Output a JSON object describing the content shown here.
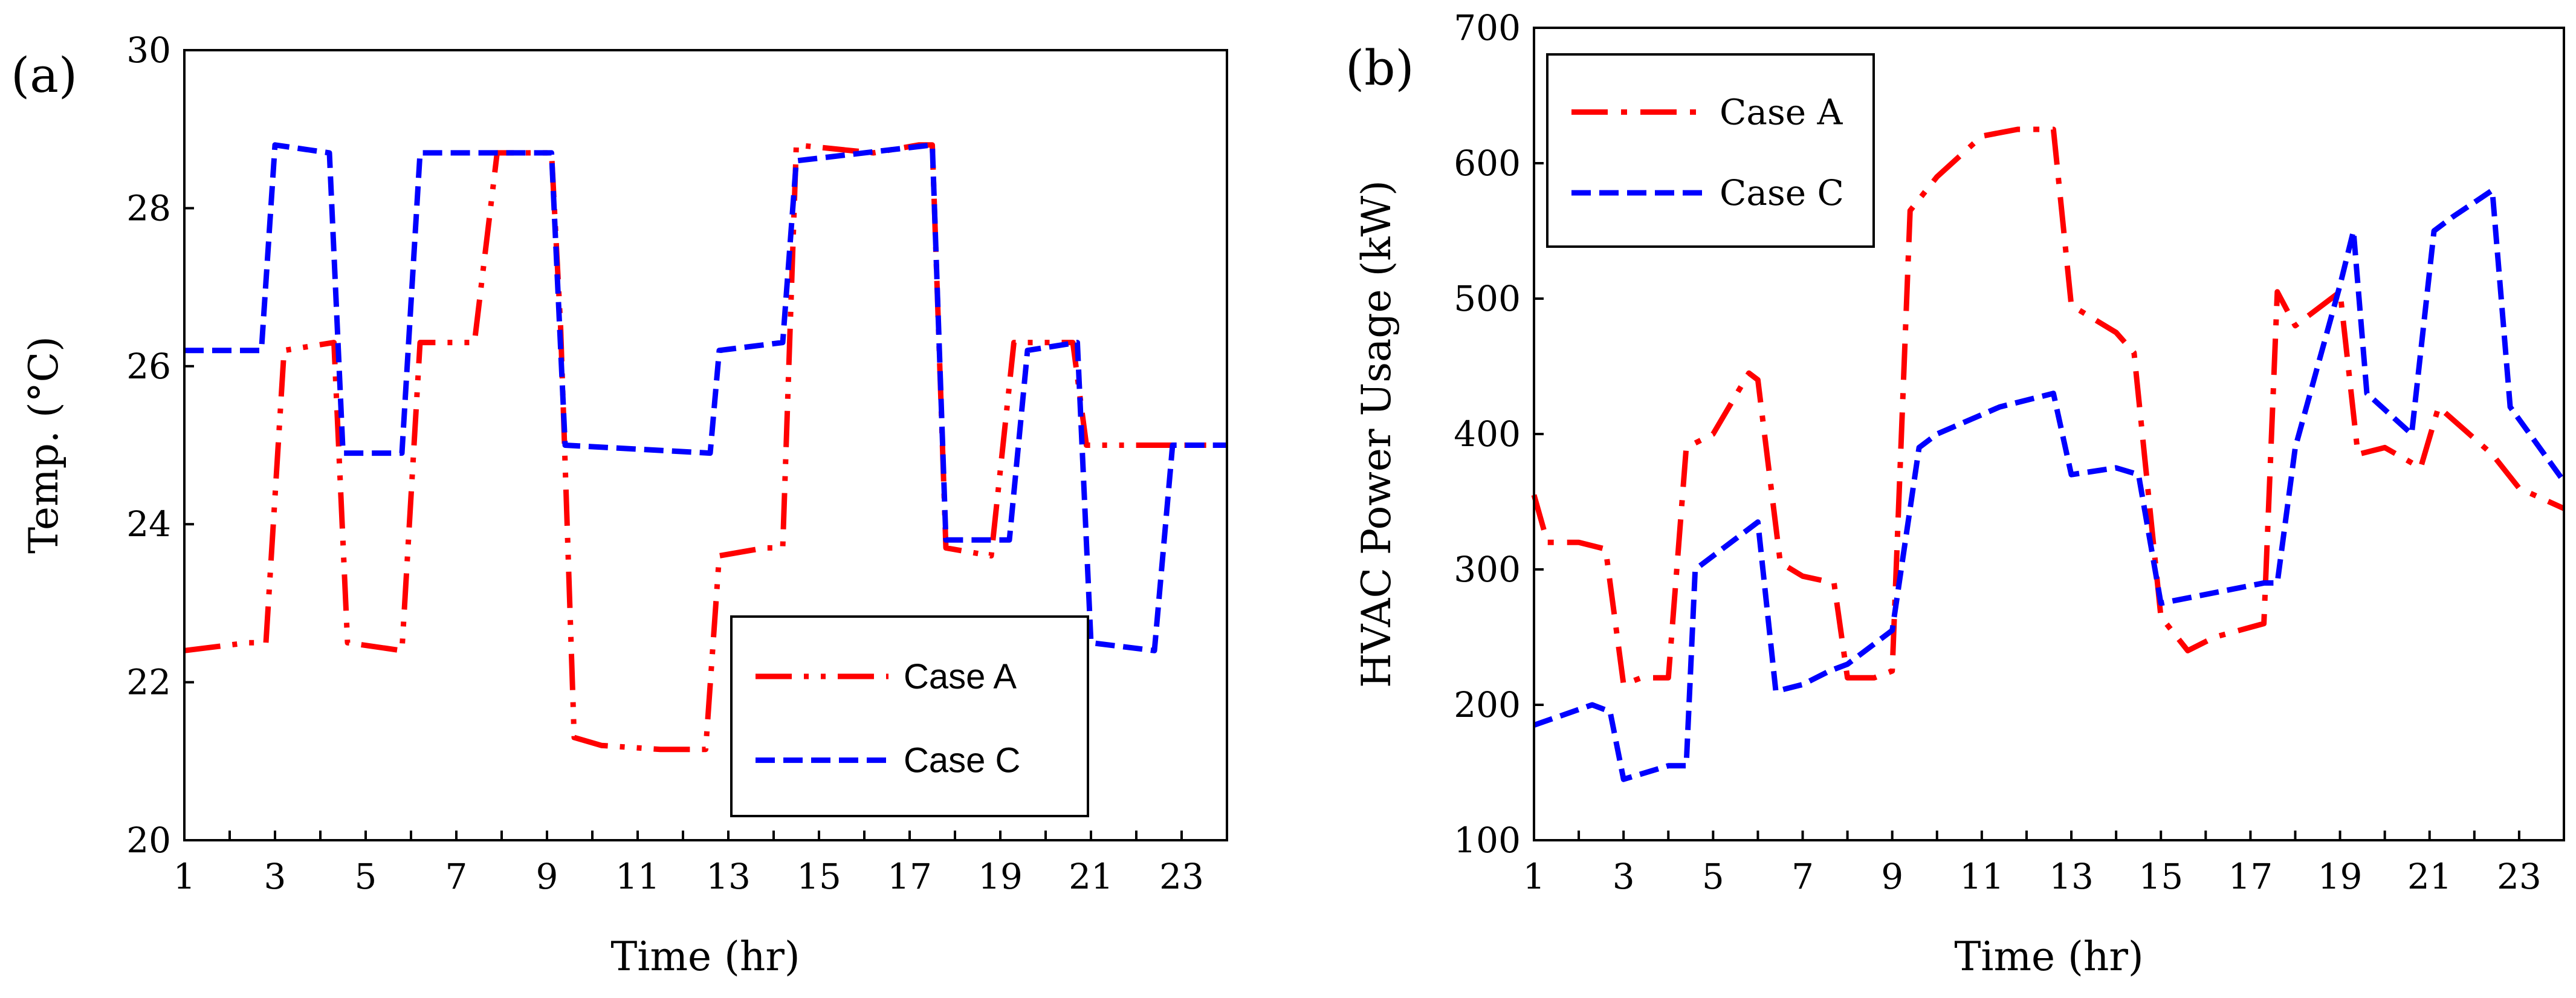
{
  "chart_data": [
    {
      "type": "line",
      "panel_label": "(a)",
      "xlabel": "Time (hr)",
      "ylabel": "Temp. (°C)",
      "xlim": [
        1,
        24
      ],
      "ylim": [
        20,
        30
      ],
      "xticks": [
        1,
        3,
        5,
        7,
        9,
        11,
        13,
        15,
        17,
        19,
        21,
        23
      ],
      "yticks": [
        20,
        22,
        24,
        26,
        28,
        30
      ],
      "legend_position": "bottom-right",
      "series": [
        {
          "name": "Case A",
          "color": "#ff0000",
          "dash": "dashdotdot",
          "x": [
            1,
            2.4,
            2.8,
            3.2,
            4.3,
            4.6,
            5.8,
            6.2,
            7.4,
            7.9,
            8.3,
            9.1,
            9.3,
            9.6,
            10.2,
            11.5,
            12.5,
            12.8,
            13.8,
            14.2,
            14.5,
            16.2,
            17.2,
            17.5,
            17.8,
            18.8,
            19.3,
            20.6,
            20.9,
            21.3,
            24
          ],
          "y": [
            22.4,
            22.5,
            22.5,
            26.2,
            26.3,
            22.5,
            22.4,
            26.3,
            26.3,
            28.7,
            28.7,
            28.7,
            26.5,
            21.3,
            21.2,
            21.15,
            21.15,
            23.6,
            23.7,
            23.7,
            28.8,
            28.7,
            28.8,
            28.8,
            23.7,
            23.6,
            26.3,
            26.3,
            25.0,
            25.0,
            25.0
          ]
        },
        {
          "name": "Case C",
          "color": "#0000ff",
          "dash": "dashed",
          "x": [
            1,
            2.7,
            3.0,
            4.2,
            4.5,
            5.8,
            6.2,
            9.1,
            9.4,
            12.6,
            12.8,
            14.2,
            14.5,
            17.5,
            17.8,
            19.2,
            19.6,
            20.7,
            21.0,
            22.4,
            22.8,
            24
          ],
          "y": [
            26.2,
            26.2,
            28.8,
            28.7,
            24.9,
            24.9,
            28.7,
            28.7,
            25.0,
            24.9,
            26.2,
            26.3,
            28.6,
            28.8,
            23.8,
            23.8,
            26.2,
            26.3,
            22.5,
            22.4,
            25.0,
            25.0
          ]
        }
      ]
    },
    {
      "type": "line",
      "panel_label": "(b)",
      "xlabel": "Time (hr)",
      "ylabel": "HVAC Power Usage (kW)",
      "xlim": [
        1,
        24
      ],
      "ylim": [
        100,
        700
      ],
      "xticks": [
        1,
        3,
        5,
        7,
        9,
        11,
        13,
        15,
        17,
        19,
        21,
        23
      ],
      "yticks": [
        100,
        200,
        300,
        400,
        500,
        600,
        700
      ],
      "legend_position": "top-left",
      "series": [
        {
          "name": "Case A",
          "color": "#ff0000",
          "dash": "dashdot",
          "x": [
            1,
            1.3,
            2,
            2.6,
            3.0,
            3.4,
            4.0,
            4.4,
            5.0,
            5.8,
            6.0,
            6.5,
            7.0,
            7.7,
            8.0,
            8.6,
            9.0,
            9.4,
            10.0,
            11.0,
            11.8,
            12.6,
            13.0,
            14.0,
            14.4,
            15.0,
            15.6,
            16.2,
            17.3,
            17.6,
            18.0,
            19.0,
            19.4,
            20.0,
            20.8,
            21.2,
            22.4,
            23.0,
            24
          ],
          "y": [
            355,
            320,
            320,
            315,
            215,
            220,
            220,
            390,
            400,
            445,
            440,
            305,
            295,
            290,
            220,
            220,
            225,
            565,
            590,
            620,
            625,
            625,
            495,
            475,
            460,
            265,
            240,
            250,
            260,
            505,
            480,
            505,
            385,
            390,
            375,
            420,
            385,
            360,
            345
          ]
        },
        {
          "name": "Case C",
          "color": "#0000ff",
          "dash": "dashed",
          "x": [
            1,
            2.3,
            2.7,
            3.0,
            4.0,
            4.4,
            4.6,
            6.0,
            6.4,
            7.0,
            7.6,
            8.0,
            9.0,
            9.6,
            10.0,
            11.4,
            12.6,
            13.0,
            14.0,
            14.5,
            15.0,
            17.3,
            17.6,
            18.0,
            19.0,
            19.3,
            19.6,
            20.6,
            21.1,
            21.5,
            22.4,
            22.8,
            24
          ],
          "y": [
            185,
            200,
            195,
            145,
            155,
            155,
            300,
            335,
            210,
            215,
            225,
            230,
            255,
            390,
            400,
            420,
            430,
            370,
            375,
            370,
            275,
            290,
            290,
            390,
            510,
            550,
            430,
            400,
            550,
            560,
            580,
            420,
            365
          ]
        }
      ]
    }
  ]
}
